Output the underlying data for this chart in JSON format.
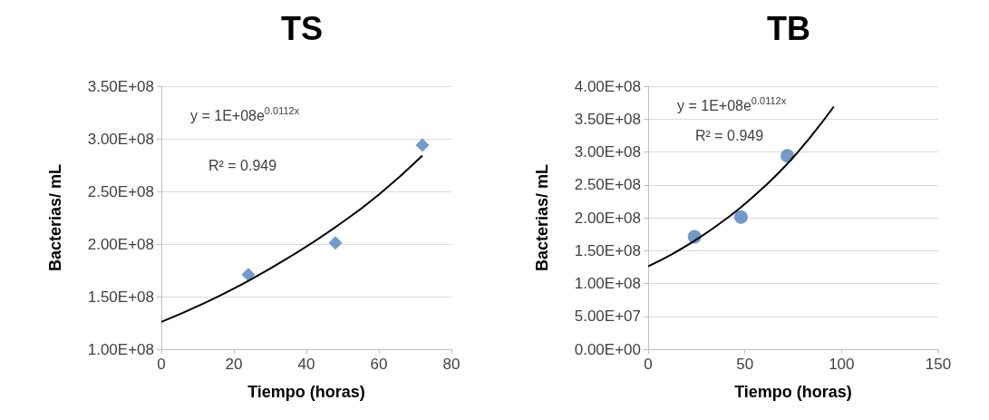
{
  "chart_data": [
    {
      "type": "scatter",
      "title": "TS",
      "xlabel": "Tiempo (horas)",
      "ylabel": "Bacterias/ mL",
      "xlim": [
        0,
        80
      ],
      "xticks": [
        0,
        20,
        40,
        60,
        80
      ],
      "ylim": [
        100000000,
        350000000
      ],
      "yticks": [
        {
          "value": 100000000,
          "label": "1.00E+08"
        },
        {
          "value": 150000000,
          "label": "1.50E+08"
        },
        {
          "value": 200000000,
          "label": "2.00E+08"
        },
        {
          "value": 250000000,
          "label": "2.50E+08"
        },
        {
          "value": 300000000,
          "label": "3.00E+08"
        },
        {
          "value": 350000000,
          "label": "3.50E+08"
        }
      ],
      "grid": "y",
      "annotations": [
        "y = 1E+08e$^{0.0112x}$",
        "R² = 0.949"
      ],
      "series": [
        {
          "marker": "diamond",
          "color": "#4f81bd",
          "x": [
            24,
            48,
            72
          ],
          "values": [
            171000000,
            201000000,
            294000000
          ]
        },
        {
          "type": "line",
          "marker": "none",
          "color": "#000000",
          "x": [
            0,
            12,
            24,
            36,
            48,
            60,
            72
          ],
          "values": [
            126000000,
            144000000,
            165000000,
            189000000,
            216000000,
            247000000,
            284000000
          ]
        }
      ]
    },
    {
      "type": "scatter",
      "title": "TB",
      "xlabel": "Tiempo (horas)",
      "ylabel": "Bacterias/ mL",
      "xlim": [
        0,
        150
      ],
      "xticks": [
        0,
        50,
        100,
        150
      ],
      "ylim": [
        0,
        400000000
      ],
      "yticks": [
        {
          "value": 0,
          "label": "0.00E+00"
        },
        {
          "value": 50000000,
          "label": "5.00E+07"
        },
        {
          "value": 100000000,
          "label": "1.00E+08"
        },
        {
          "value": 150000000,
          "label": "1.50E+08"
        },
        {
          "value": 200000000,
          "label": "2.00E+08"
        },
        {
          "value": 250000000,
          "label": "2.50E+08"
        },
        {
          "value": 300000000,
          "label": "3.00E+08"
        },
        {
          "value": 350000000,
          "label": "3.50E+08"
        },
        {
          "value": 400000000,
          "label": "4.00E+08"
        }
      ],
      "grid": "y",
      "annotations": [
        "y = 1E+08e$^{0.0112x}$",
        "R² = 0.949"
      ],
      "series": [
        {
          "marker": "circle",
          "color": "#4f81bd",
          "x": [
            24,
            48,
            72
          ],
          "values": [
            171000000,
            201000000,
            294000000
          ]
        },
        {
          "type": "line",
          "marker": "none",
          "color": "#000000",
          "x": [
            0,
            12,
            24,
            36,
            48,
            60,
            72,
            84,
            96
          ],
          "values": [
            126000000,
            144000000,
            165000000,
            189000000,
            216000000,
            247000000,
            282000000,
            323000000,
            369000000
          ]
        }
      ]
    }
  ]
}
